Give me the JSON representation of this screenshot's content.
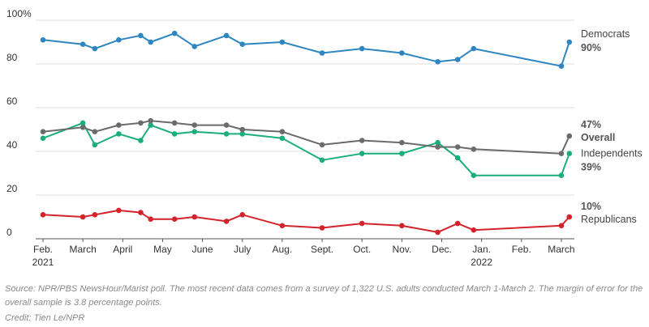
{
  "chart_data": {
    "type": "line",
    "title": "",
    "xlabel": "",
    "ylabel": "",
    "ylim": [
      0,
      100
    ],
    "y_ticks": [
      0,
      20,
      40,
      60,
      80,
      100
    ],
    "y_tick_labels": [
      "0",
      "20",
      "40",
      "60",
      "80",
      "100%"
    ],
    "x_ticks": [
      {
        "t": 0.0,
        "label": "Feb.",
        "sub": "2021"
      },
      {
        "t": 1.0,
        "label": "March",
        "sub": ""
      },
      {
        "t": 2.0,
        "label": "April",
        "sub": ""
      },
      {
        "t": 3.0,
        "label": "May",
        "sub": ""
      },
      {
        "t": 4.0,
        "label": "June",
        "sub": ""
      },
      {
        "t": 5.0,
        "label": "July",
        "sub": ""
      },
      {
        "t": 6.0,
        "label": "Aug.",
        "sub": ""
      },
      {
        "t": 7.0,
        "label": "Sept.",
        "sub": ""
      },
      {
        "t": 8.0,
        "label": "Oct.",
        "sub": ""
      },
      {
        "t": 9.0,
        "label": "Nov.",
        "sub": ""
      },
      {
        "t": 10.0,
        "label": "Dec.",
        "sub": ""
      },
      {
        "t": 11.0,
        "label": "Jan.",
        "sub": "2022"
      },
      {
        "t": 12.0,
        "label": "Feb.",
        "sub": ""
      },
      {
        "t": 13.0,
        "label": "March",
        "sub": ""
      }
    ],
    "x": [
      0.0,
      1.0,
      1.3,
      1.9,
      2.45,
      2.7,
      3.3,
      3.8,
      4.6,
      5.0,
      6.0,
      7.0,
      8.0,
      9.0,
      9.9,
      10.4,
      10.8,
      13.0,
      13.2
    ],
    "series": [
      {
        "name": "Democrats",
        "color": "#2e86c1",
        "values": [
          91,
          89,
          87,
          91,
          93,
          90,
          94,
          88,
          93,
          89,
          90,
          85,
          87,
          85,
          81,
          82,
          87,
          79,
          90
        ]
      },
      {
        "name": "Overall",
        "color": "#6b6b6b",
        "values": [
          49,
          51,
          49,
          52,
          53,
          54,
          53,
          52,
          52,
          50,
          49,
          43,
          45,
          44,
          42,
          42,
          41,
          39,
          47
        ]
      },
      {
        "name": "Independents",
        "color": "#1aae7c",
        "values": [
          46,
          53,
          43,
          48,
          45,
          52,
          48,
          49,
          48,
          48,
          46,
          36,
          39,
          39,
          44,
          37,
          29,
          29,
          39
        ]
      },
      {
        "name": "Republicans",
        "color": "#d3242c",
        "values": [
          11,
          10,
          11,
          13,
          12,
          9,
          9,
          10,
          8,
          11,
          6,
          5,
          7,
          6,
          3,
          7,
          4,
          6,
          10
        ]
      }
    ],
    "end_labels": [
      {
        "series": "Democrats",
        "name": "Democrats",
        "pct": "90%",
        "order": "name-first"
      },
      {
        "series": "Overall",
        "name": "Overall",
        "pct": "47%",
        "order": "pct-first"
      },
      {
        "series": "Independents",
        "name": "Independents",
        "pct": "39%",
        "order": "name-first"
      },
      {
        "series": "Republicans",
        "name": "Republicans",
        "pct": "10%",
        "order": "pct-first"
      }
    ],
    "grid": true,
    "legend": "inline at line ends (right)"
  },
  "footer": {
    "source": "Source: NPR/PBS NewsHour/Marist poll. The most recent data comes from a survey of 1,322 U.S. adults conducted March 1-March 2. The margin of error for the overall sample is 3.8 percentage points.",
    "credit": "Credit: Tien Le/NPR"
  }
}
